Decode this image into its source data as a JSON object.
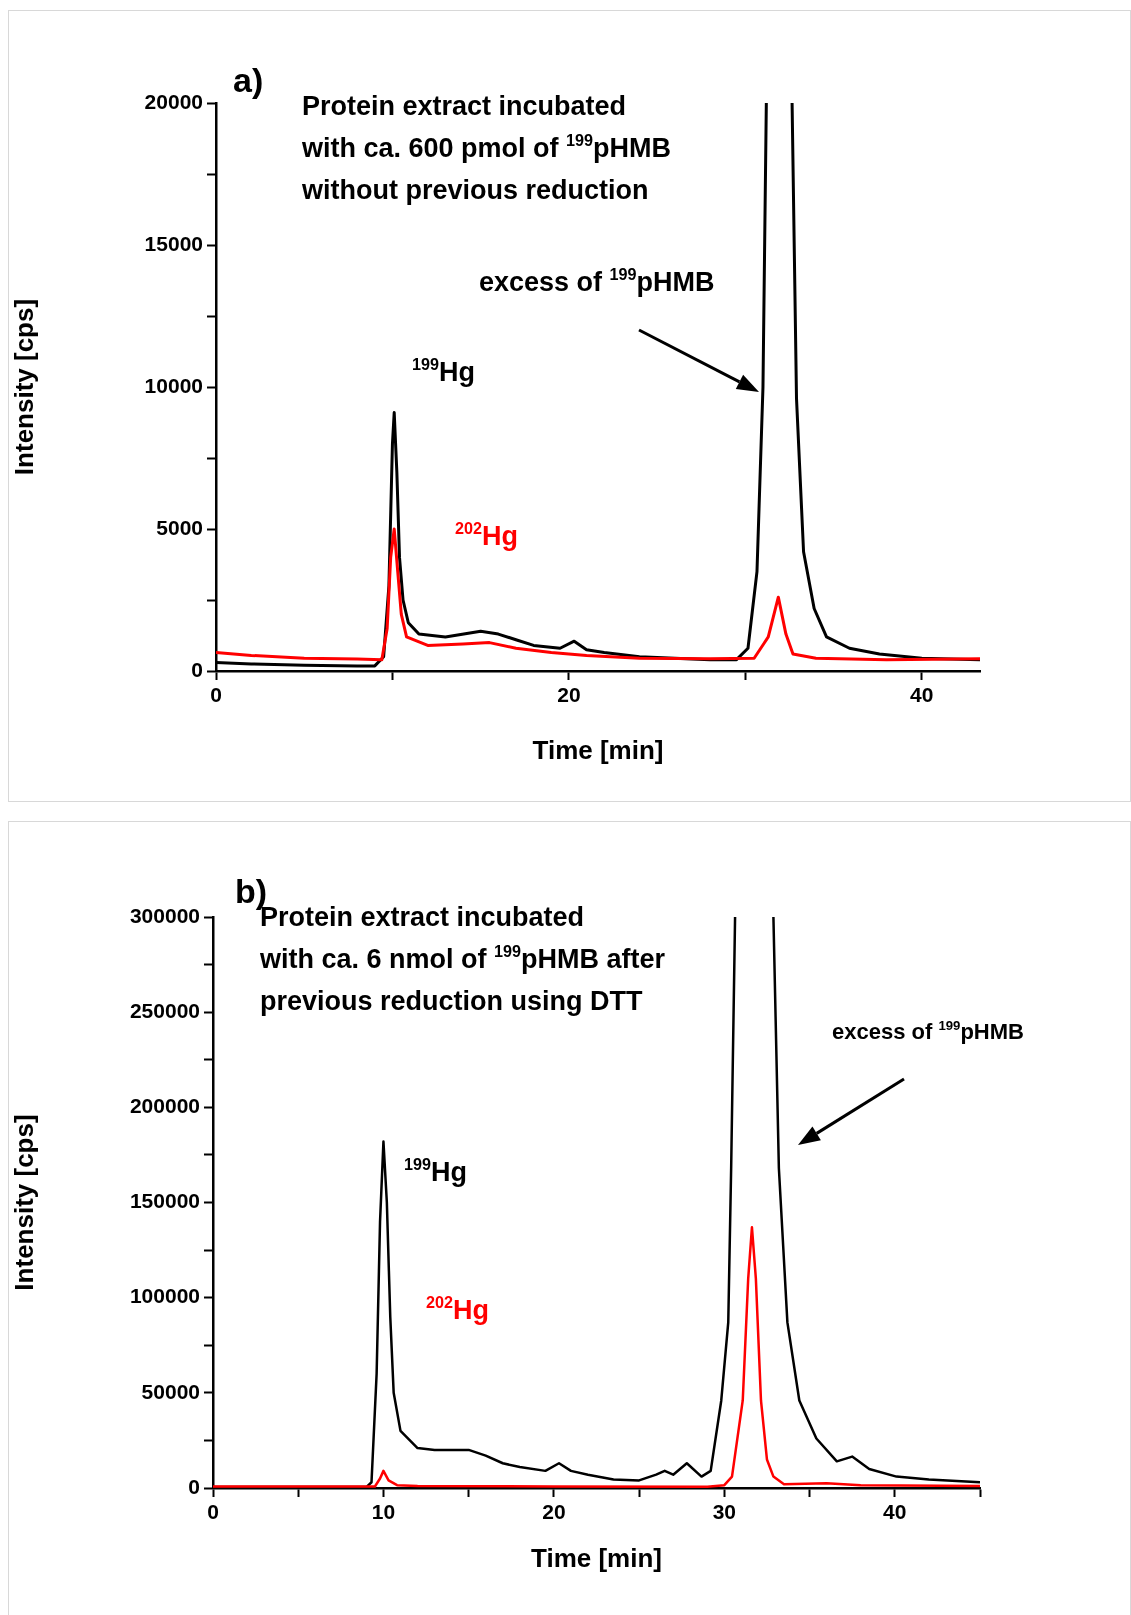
{
  "chart_data": [
    {
      "type": "line",
      "title": "a)",
      "xlabel": "Time [min]",
      "ylabel": "Intensity [cps]",
      "xlim": [
        0,
        43.3
      ],
      "ylim": [
        0,
        20000
      ],
      "xticks": [
        0,
        {
          "value": 10,
          "label": null
        },
        20,
        {
          "value": 30,
          "label": null
        },
        40
      ],
      "yticks": [
        0,
        {
          "value": 2500,
          "label": null
        },
        5000,
        {
          "value": 7500,
          "label": null
        },
        10000,
        {
          "value": 12500,
          "label": null
        },
        15000,
        {
          "value": 17500,
          "label": null
        },
        20000
      ],
      "grid": false,
      "legend": false,
      "marker": "none",
      "line_style": "solid",
      "annotations": [
        "Protein extract incubated\nwith ca. 600 pmol of $^{199}$pHMB\nwithout previous reduction",
        "excess of $^{199}$pHMB"
      ],
      "series": [
        {
          "name": "$^{199}$Hg",
          "color": "#000000",
          "x": [
            0,
            2,
            5,
            8,
            9,
            9.5,
            9.8,
            10,
            10.1,
            10.25,
            10.4,
            10.6,
            10.9,
            11.5,
            13,
            15,
            16,
            17,
            18,
            19.5,
            20.3,
            21,
            22,
            24,
            26,
            28,
            29.5,
            30.15,
            30.66,
            31,
            31.19,
            32,
            32.65,
            32.9,
            33.3,
            33.9,
            34.6,
            35.9,
            37.6,
            40,
            43.3
          ],
          "values": [
            300,
            250,
            200,
            180,
            180,
            500,
            3000,
            8000,
            9100,
            7000,
            4000,
            2500,
            1700,
            1300,
            1200,
            1400,
            1300,
            1100,
            900,
            800,
            1050,
            750,
            650,
            500,
            450,
            400,
            400,
            800,
            3500,
            10000,
            20000,
            null,
            20000,
            9600,
            4200,
            2200,
            1200,
            800,
            600,
            450,
            400
          ]
        },
        {
          "name": "$^{202}$Hg",
          "color": "#ff0000",
          "x": [
            0,
            2,
            5,
            8,
            9.4,
            9.7,
            9.9,
            10.1,
            10.3,
            10.5,
            10.8,
            12,
            14,
            15.5,
            17,
            19,
            21,
            24,
            28,
            30.5,
            31.3,
            31.87,
            32.3,
            32.7,
            34,
            38,
            43.3
          ],
          "values": [
            650,
            550,
            450,
            420,
            400,
            1500,
            4000,
            5000,
            3500,
            2000,
            1200,
            900,
            950,
            1000,
            800,
            650,
            550,
            450,
            430,
            450,
            1200,
            2600,
            1300,
            600,
            450,
            400,
            430
          ]
        }
      ]
    },
    {
      "type": "line",
      "title": "b)",
      "xlabel": "Time [min]",
      "ylabel": "Intensity [cps]",
      "xlim": [
        0,
        45
      ],
      "ylim": [
        0,
        300000
      ],
      "xticks": [
        0,
        {
          "value": 5,
          "label": null
        },
        10,
        {
          "value": 15,
          "label": null
        },
        20,
        {
          "value": 25,
          "label": null
        },
        30,
        {
          "value": 35,
          "label": null
        },
        40,
        {
          "value": 45,
          "label": null
        }
      ],
      "yticks": [
        0,
        {
          "value": 25000,
          "label": null
        },
        50000,
        {
          "value": 75000,
          "label": null
        },
        100000,
        {
          "value": 125000,
          "label": null
        },
        150000,
        {
          "value": 175000,
          "label": null
        },
        200000,
        {
          "value": 225000,
          "label": null
        },
        250000,
        {
          "value": 275000,
          "label": null
        },
        300000
      ],
      "grid": false,
      "legend": false,
      "marker": "none",
      "line_style": "solid",
      "annotations": [
        "Protein extract incubated\nwith ca. 6 nmol of $^{199}$pHMB after\nprevious reduction using DTT",
        "excess of $^{199}$pHMB"
      ],
      "series": [
        {
          "name": "$^{199}$Hg",
          "color": "#000000",
          "x": [
            0,
            9,
            9.3,
            9.6,
            9.8,
            10,
            10.2,
            10.4,
            10.6,
            11,
            12,
            13,
            15,
            16,
            17,
            18,
            19.5,
            20.3,
            21,
            22,
            23.5,
            25,
            26,
            26.5,
            27,
            27.8,
            28.66,
            29.2,
            29.82,
            30.23,
            30.4,
            30.63,
            31.8,
            32.88,
            33.2,
            33.7,
            34.4,
            35.4,
            36.6,
            37.5,
            38.5,
            40.1,
            42,
            45
          ],
          "values": [
            500,
            500,
            3000,
            60000,
            140000,
            182000,
            150000,
            90000,
            50000,
            30000,
            21000,
            20000,
            20000,
            17000,
            13000,
            11000,
            9000,
            13000,
            9000,
            7000,
            4500,
            4000,
            7000,
            9000,
            7000,
            13000,
            6000,
            9000,
            46000,
            87000,
            168000,
            300000,
            null,
            300000,
            168000,
            87000,
            46000,
            26000,
            14000,
            16500,
            10000,
            6000,
            4500,
            3000
          ]
        },
        {
          "name": "$^{202}$Hg",
          "color": "#ff0000",
          "x": [
            0,
            9.5,
            9.8,
            10,
            10.3,
            10.8,
            12,
            20,
            29,
            30,
            30.45,
            31.08,
            31.4,
            31.62,
            31.85,
            32.15,
            32.5,
            32.88,
            33.5,
            36,
            38,
            45
          ],
          "values": [
            800,
            800,
            5000,
            9000,
            4000,
            1500,
            1000,
            800,
            700,
            1500,
            6000,
            46000,
            110000,
            137000,
            110000,
            46000,
            15000,
            6000,
            2000,
            2500,
            1500,
            1000
          ]
        }
      ]
    }
  ]
}
